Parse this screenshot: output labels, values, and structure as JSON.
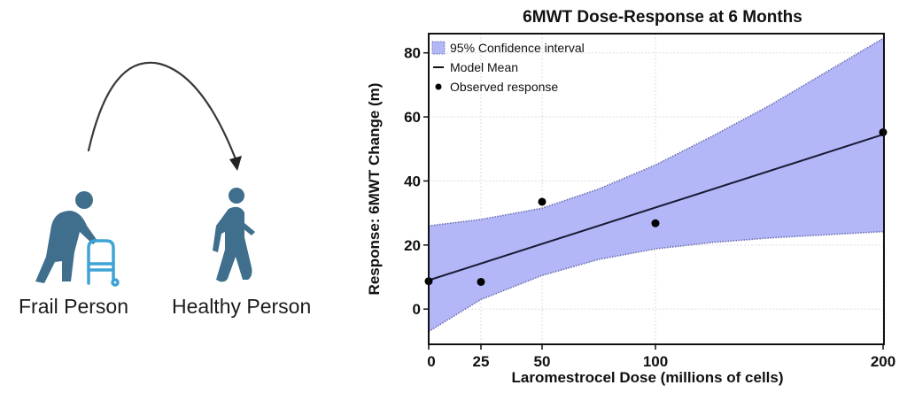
{
  "illustration": {
    "left_figure_label": "Frail Person",
    "right_figure_label": "Healthy Person",
    "left_icon": "person-with-walker-icon",
    "right_icon": "walking-person-icon",
    "arrow_icon": "curved-arrow-icon",
    "colors": {
      "person": "#3f6f8c",
      "walker": "#3ea3d6",
      "arrow": "#222222"
    }
  },
  "chart_data": {
    "type": "line",
    "title": "6MWT Dose-Response at 6 Months",
    "xlabel": "Laromestrocel Dose (millions of cells)",
    "ylabel": "Response: 6MWT Change (m)",
    "xlim": [
      0,
      200
    ],
    "ylim": [
      -11,
      86
    ],
    "x_ticks": [
      0,
      25,
      50,
      100,
      200
    ],
    "x_tick_labels": [
      "0",
      "25",
      "50",
      "100",
      "200"
    ],
    "y_ticks": [
      0,
      20,
      40,
      60,
      80
    ],
    "y_tick_labels": [
      "0",
      "20",
      "40",
      "60",
      "80"
    ],
    "grid": true,
    "legend_position": "top-left",
    "legend": [
      {
        "label": "95% Confidence interval",
        "marker": "shaded-box"
      },
      {
        "label": "Model Mean",
        "marker": "line"
      },
      {
        "label": "Observed response",
        "marker": "dot"
      }
    ],
    "series": [
      {
        "name": "Observed response",
        "kind": "points",
        "x": [
          0,
          25,
          50,
          100,
          200
        ],
        "y": [
          8.7,
          8.5,
          33.5,
          26.8,
          55.2
        ]
      },
      {
        "name": "Model Mean",
        "kind": "line",
        "x": [
          0,
          200
        ],
        "y": [
          9.0,
          54.5
        ]
      },
      {
        "name": "95% Confidence interval",
        "kind": "band",
        "x": [
          0,
          25,
          50,
          75,
          100,
          125,
          150,
          175,
          200
        ],
        "upper": [
          26.0,
          28.0,
          31.5,
          37.5,
          45.0,
          54.0,
          63.5,
          74.0,
          84.5
        ],
        "lower": [
          -7.0,
          3.0,
          10.5,
          15.5,
          18.8,
          20.8,
          22.2,
          23.2,
          24.2
        ]
      }
    ],
    "colors": {
      "band": "#b3b7f7",
      "band_edge": "#6b6fb0",
      "line": "#1a1a33",
      "points": "#000000",
      "grid": "#dddddd"
    }
  }
}
